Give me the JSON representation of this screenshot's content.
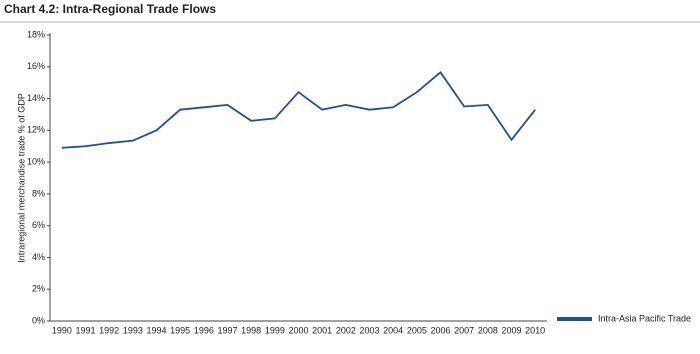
{
  "chart_data": {
    "type": "line",
    "title": "Chart 4.2: Intra-Regional Trade Flows",
    "y_label": "Intraregional merchandise trade % of GDP",
    "categories": [
      "1990",
      "1991",
      "1992",
      "1993",
      "1994",
      "1995",
      "1996",
      "1997",
      "1998",
      "1999",
      "2000",
      "2001",
      "2002",
      "2003",
      "2004",
      "2005",
      "2006",
      "2007",
      "2008",
      "2009",
      "2010"
    ],
    "series": [
      {
        "name": "Intra-Asia Pacific Trade",
        "color": "#1f4e9c",
        "values": [
          10.9,
          11.0,
          11.2,
          11.35,
          12.0,
          13.3,
          13.45,
          13.6,
          12.6,
          12.75,
          14.4,
          13.3,
          13.6,
          13.3,
          13.45,
          14.4,
          15.65,
          13.5,
          13.6,
          11.4,
          13.3
        ]
      }
    ],
    "ylim": [
      0,
      18
    ],
    "yticks": [
      {
        "value": 0,
        "label": "0%"
      },
      {
        "value": 2,
        "label": "2%"
      },
      {
        "value": 4,
        "label": "4%"
      },
      {
        "value": 6,
        "label": "6%"
      },
      {
        "value": 8,
        "label": "8%"
      },
      {
        "value": 10,
        "label": "10%"
      },
      {
        "value": 12,
        "label": "12%"
      },
      {
        "value": 14,
        "label": "14%"
      },
      {
        "value": 16,
        "label": "16%"
      },
      {
        "value": 18,
        "label": "18%"
      }
    ],
    "grid": false,
    "legend": "right"
  }
}
